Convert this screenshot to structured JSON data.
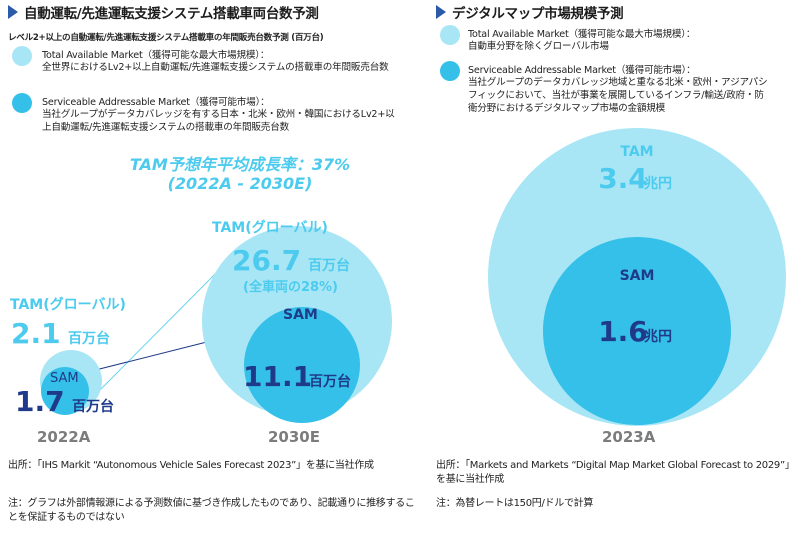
{
  "left": {
    "title": "自動運転/先進運転支援システム搭載車両台数予測",
    "subtitle": "レベル2+以上の自動運転/先進運転支援システム搭載車の年間販売台数予測 (百万台)",
    "legend_tam_head": "Total Available Market（獲得可能な最大市場規模）：",
    "legend_tam_body": "全世界におけるLv2+以上自動運転/先進運転支援システムの搭載車の年間販売台数",
    "legend_sam_head": "Serviceable Addressable Market（獲得可能市場）：",
    "legend_sam_body": "当社グループがデータカバレッジを有する日本・北米・欧州・韓国におけるLv2+以上自動運転/先進運転支援システムの搭載車の年間販売台数",
    "cagr_line1": "TAM予想年平均成長率：37%",
    "cagr_line2": "(2022A - 2030E)",
    "source": "出所：「IHS Markit “Autonomous Vehicle Sales Forecast 2023”」を基に当社作成",
    "note": "注：グラフは外部情報源による予測数値に基づき作成したものであり、記載通りに推移することを保証するものではない"
  },
  "right": {
    "title": "デジタルマップ市場規模予測",
    "legend_tam_head": "Total Available Market（獲得可能な最大市場規模）：",
    "legend_tam_body": "自動車分野を除くグローバル市場",
    "legend_sam_head": "Serviceable Addressable Market（獲得可能市場）：",
    "legend_sam_body": "当社グループのデータカバレッジ地域と重なる北米・欧州・アジアパシフィックにおいて、当社が事業を展開しているインフラ/輸送/政府・防衛分野におけるデジタルマップ市場の金額規模",
    "source": "出所：「Markets and Markets “Digital Map Market Global Forecast to 2029”」を基に当社作成",
    "note": "注：為替レートは150円/ドルで計算"
  },
  "colors": {
    "tam": "#a8e6f6",
    "sam": "#34c0e8",
    "tam_text": "#4ccbee",
    "sam_text": "#1f3a8a",
    "year": "#7c7c7c"
  },
  "chart_data": [
    {
      "type": "bubble",
      "title": "自動運転/先進運転支援システム搭載車両台数予測",
      "unit": "百万台",
      "categories": [
        "2022A",
        "2030E"
      ],
      "series": [
        {
          "name": "TAM",
          "label": "TAM(グローバル)",
          "values": [
            2.1,
            26.7
          ],
          "notes": [
            "",
            "(全車両の28%)"
          ]
        },
        {
          "name": "SAM",
          "label": "SAM",
          "values": [
            1.7,
            11.1
          ]
        }
      ]
    },
    {
      "type": "bubble",
      "title": "デジタルマップ市場規模予測",
      "unit": "兆円",
      "categories": [
        "2023A"
      ],
      "series": [
        {
          "name": "TAM",
          "label": "TAM",
          "values": [
            3.4
          ]
        },
        {
          "name": "SAM",
          "label": "SAM",
          "values": [
            1.6
          ]
        }
      ]
    }
  ]
}
